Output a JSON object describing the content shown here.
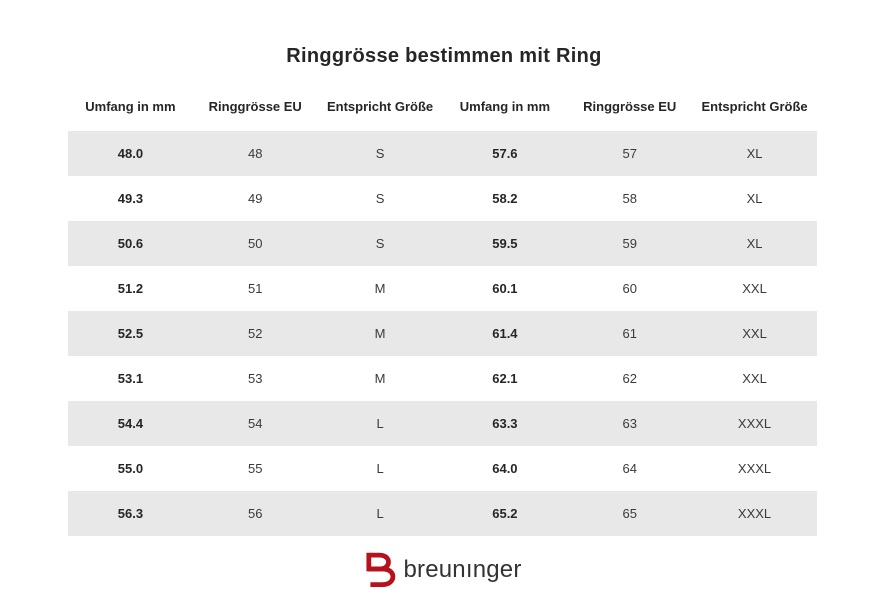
{
  "page": {
    "title": "Ringgrösse bestimmen mit Ring",
    "background": "#ffffff"
  },
  "table": {
    "columns": [
      "Umfang in mm",
      "Ringgrösse EU",
      "Entspricht Größe",
      "Umfang in mm",
      "Ringgrösse EU",
      "Entspricht Größe"
    ],
    "rows": [
      [
        "48.0",
        "48",
        "S",
        "57.6",
        "57",
        "XL"
      ],
      [
        "49.3",
        "49",
        "S",
        "58.2",
        "58",
        "XL"
      ],
      [
        "50.6",
        "50",
        "S",
        "59.5",
        "59",
        "XL"
      ],
      [
        "51.2",
        "51",
        "M",
        "60.1",
        "60",
        "XXL"
      ],
      [
        "52.5",
        "52",
        "M",
        "61.4",
        "61",
        "XXL"
      ],
      [
        "53.1",
        "53",
        "M",
        "62.1",
        "62",
        "XXL"
      ],
      [
        "54.4",
        "54",
        "L",
        "63.3",
        "63",
        "XXXL"
      ],
      [
        "55.0",
        "55",
        "L",
        "64.0",
        "64",
        "XXXL"
      ],
      [
        "56.3",
        "56",
        "L",
        "65.2",
        "65",
        "XXXL"
      ]
    ],
    "row_alt_color": "#e8e8e8"
  },
  "footer": {
    "logo_text": "breunınger",
    "logo_icon": "breuninger-b-icon",
    "logo_color": "#b5121b",
    "logo_text_color": "#333333"
  }
}
